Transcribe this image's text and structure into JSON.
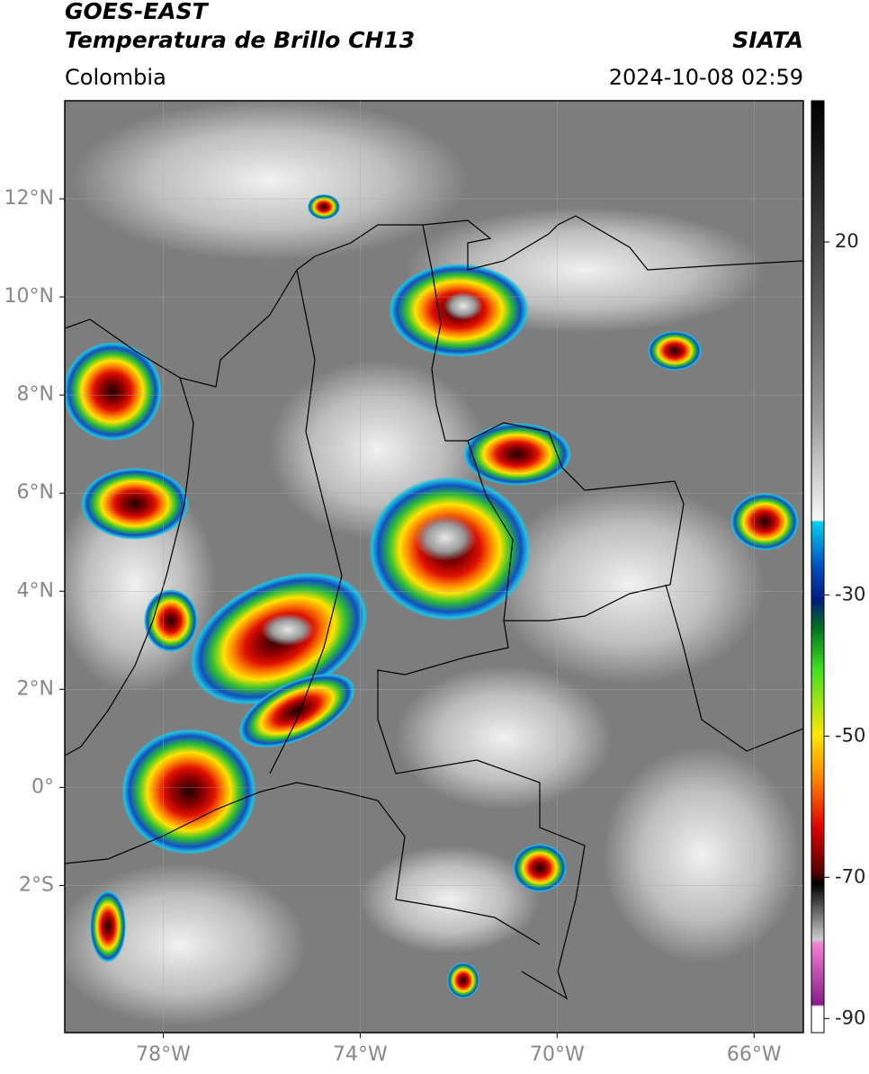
{
  "header": {
    "title_line1": "GOES-EAST",
    "title_line2": "Temperatura de Brillo CH13",
    "source": "SIATA",
    "region": "Colombia",
    "datetime": "2024-10-08 02:59"
  },
  "map": {
    "xlim": [
      -80,
      -65
    ],
    "ylim": [
      -5,
      14
    ],
    "xticks": [
      {
        "value": -78,
        "label": "78°W"
      },
      {
        "value": -74,
        "label": "74°W"
      },
      {
        "value": -70,
        "label": "70°W"
      },
      {
        "value": -66,
        "label": "66°W"
      }
    ],
    "yticks": [
      {
        "value": 12,
        "label": "12°N"
      },
      {
        "value": 10,
        "label": "10°N"
      },
      {
        "value": 8,
        "label": "8°N"
      },
      {
        "value": 6,
        "label": "6°N"
      },
      {
        "value": 4,
        "label": "4°N"
      },
      {
        "value": 2,
        "label": "2°N"
      },
      {
        "value": 0,
        "label": "0°"
      },
      {
        "value": -2,
        "label": "2°S"
      }
    ],
    "grid": true
  },
  "colorbar": {
    "lim": [
      -92,
      40
    ],
    "ticks": [
      20,
      -30,
      -50,
      -70,
      -90
    ]
  }
}
